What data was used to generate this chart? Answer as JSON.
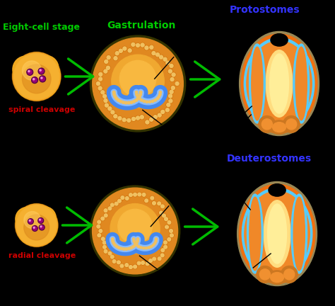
{
  "bg_color": "#000000",
  "top_label1": "Eight-cell stage",
  "top_label1_color": "#00cc00",
  "top_label2": "Gastrulation",
  "top_label2_color": "#00cc00",
  "label_protostomes": "Protostomes",
  "label_protostomes_color": "#3333ff",
  "label_deuterostomes": "Deuterostomes",
  "label_deuterostomes_color": "#3333ff",
  "label_spiral": "spiral cleavage",
  "label_spiral_color": "#cc0000",
  "label_radial": "radial cleavage",
  "label_radial_color": "#cc0000",
  "arrow_color": "#00bb00",
  "cell_outer": "#f0a020",
  "cell_inner": "#e08010",
  "cell_lobe": "#f5b840",
  "gastrula_dark_rim": "#555500",
  "gastrula_orange": "#e08820",
  "gastrula_dotted_color": "#f0c050",
  "gastrula_inner_orange": "#f0a030",
  "gastrula_tan_inner": "#d4a060",
  "archenteron_blue": "#4488ee",
  "archenteron_blue_light": "#88bbff",
  "cs_outer_tan": "#aa8844",
  "cs_orange1": "#f07010",
  "cs_cyan": "#55ccff",
  "cs_orange2": "#f09030",
  "cs_yellow": "#ffdd80",
  "cs_center_orange": "#ff9900"
}
